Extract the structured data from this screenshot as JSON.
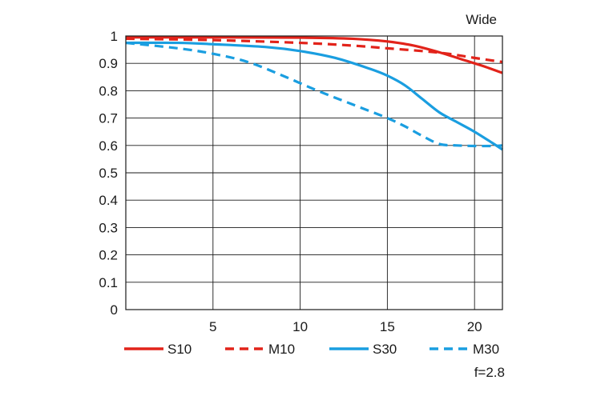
{
  "chart_data": {
    "type": "line",
    "title": "Wide",
    "footnote": "f=2.8",
    "xlim": [
      0,
      21.6
    ],
    "ylim": [
      0,
      1
    ],
    "x_ticks": [
      5,
      10,
      15,
      20
    ],
    "y_ticks": [
      0,
      0.1,
      0.2,
      0.3,
      0.4,
      0.5,
      0.6,
      0.7,
      0.8,
      0.9,
      1
    ],
    "y_tick_labels": [
      "0",
      "0.1",
      "0.2",
      "0.3",
      "0.4",
      "0.5",
      "0.6",
      "0.7",
      "0.8",
      "0.9",
      "1"
    ],
    "x_tick_labels": [
      "5",
      "10",
      "15",
      "20"
    ],
    "grid": true,
    "legend_position": "bottom",
    "series": [
      {
        "name": "S10",
        "color": "#e2231a",
        "dash": "solid",
        "x": [
          0,
          5,
          10,
          13,
          15,
          16.5,
          18,
          19.5,
          20.5,
          21.6
        ],
        "y": [
          0.995,
          0.995,
          0.994,
          0.99,
          0.98,
          0.965,
          0.94,
          0.91,
          0.89,
          0.865
        ]
      },
      {
        "name": "M10",
        "color": "#e2231a",
        "dash": "dashed",
        "x": [
          0,
          5,
          10,
          13,
          15,
          17,
          18.5,
          20,
          21.6
        ],
        "y": [
          0.99,
          0.985,
          0.975,
          0.965,
          0.955,
          0.945,
          0.935,
          0.92,
          0.905
        ]
      },
      {
        "name": "S30",
        "color": "#1a9ee0",
        "dash": "solid",
        "x": [
          0,
          3,
          5,
          8,
          10,
          12,
          14,
          15,
          16,
          17,
          18,
          19,
          20,
          21,
          21.6
        ],
        "y": [
          0.975,
          0.975,
          0.97,
          0.96,
          0.945,
          0.92,
          0.88,
          0.855,
          0.82,
          0.77,
          0.72,
          0.685,
          0.65,
          0.61,
          0.585
        ]
      },
      {
        "name": "M30",
        "color": "#1a9ee0",
        "dash": "dashed",
        "x": [
          0,
          3,
          5,
          7,
          9,
          11,
          13,
          15,
          16,
          17,
          18,
          19,
          20,
          21,
          21.6
        ],
        "y": [
          0.975,
          0.955,
          0.935,
          0.905,
          0.855,
          0.8,
          0.75,
          0.7,
          0.67,
          0.635,
          0.605,
          0.6,
          0.598,
          0.598,
          0.6
        ]
      }
    ]
  }
}
